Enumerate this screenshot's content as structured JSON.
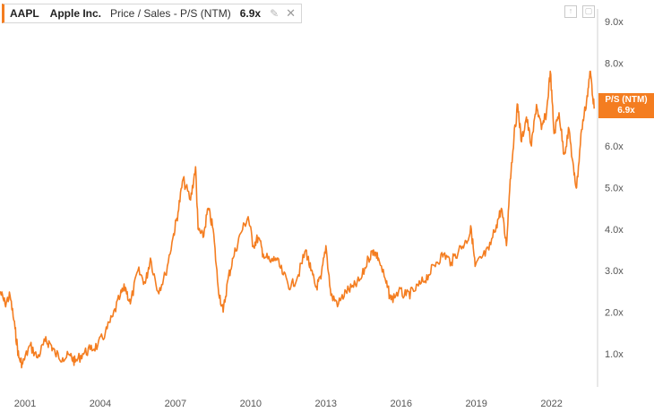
{
  "legend": {
    "ticker": "AAPL",
    "company": "Apple Inc.",
    "metric": "Price / Sales - P/S (NTM)",
    "current_value": "6.9x",
    "icons": [
      "chart-settings-icon",
      "close-icon"
    ]
  },
  "badge": {
    "label": "P/S (NTM)",
    "value": "6.9x"
  },
  "toolbar": {
    "icons": [
      "export-icon",
      "fullscreen-icon"
    ]
  },
  "colors": {
    "line": "#f47d20",
    "axis": "#d0d0d0",
    "text": "#555555"
  },
  "chart_data": {
    "type": "line",
    "title": "",
    "xlabel": "",
    "ylabel": "",
    "ylim": [
      0.2,
      9.3
    ],
    "xlim": [
      2000.0,
      2023.8
    ],
    "x_ticks": [
      2001,
      2004,
      2007,
      2010,
      2013,
      2016,
      2019,
      2022
    ],
    "y_ticks": [
      "1.0x",
      "2.0x",
      "3.0x",
      "4.0x",
      "5.0x",
      "6.0x",
      "7.0x",
      "8.0x",
      "9.0x"
    ],
    "y_tick_values": [
      1,
      2,
      3,
      4,
      5,
      6,
      7,
      8,
      9
    ],
    "grid": false,
    "series": [
      {
        "x": [
          2000.0,
          2000.2,
          2000.4,
          2000.6,
          2000.75,
          2000.9,
          2001.2,
          2001.5,
          2001.8,
          2002.0,
          2002.2,
          2002.5,
          2002.8,
          2003.0,
          2003.3,
          2003.6,
          2003.9,
          2004.2,
          2004.5,
          2004.8,
          2005.0,
          2005.2,
          2005.5,
          2005.8,
          2006.0,
          2006.3,
          2006.6,
          2006.9,
          2007.1,
          2007.3,
          2007.6,
          2007.8,
          2007.9,
          2008.1,
          2008.3,
          2008.5,
          2008.7,
          2008.9,
          2009.1,
          2009.3,
          2009.6,
          2009.9,
          2010.1,
          2010.3,
          2010.5,
          2010.8,
          2011.0,
          2011.3,
          2011.6,
          2011.9,
          2012.2,
          2012.4,
          2012.6,
          2012.8,
          2013.0,
          2013.2,
          2013.5,
          2013.8,
          2014.1,
          2014.4,
          2014.7,
          2014.9,
          2015.1,
          2015.4,
          2015.6,
          2015.9,
          2016.2,
          2016.5,
          2016.8,
          2017.1,
          2017.4,
          2017.7,
          2018.0,
          2018.3,
          2018.6,
          2018.8,
          2018.95,
          2019.2,
          2019.5,
          2019.8,
          2020.0,
          2020.2,
          2020.35,
          2020.5,
          2020.65,
          2020.8,
          2021.0,
          2021.2,
          2021.4,
          2021.6,
          2021.8,
          2021.95,
          2022.1,
          2022.3,
          2022.5,
          2022.7,
          2022.9,
          2023.0,
          2023.2,
          2023.4,
          2023.55,
          2023.7
        ],
        "y": [
          2.5,
          2.2,
          2.4,
          1.6,
          0.9,
          0.75,
          1.2,
          0.9,
          1.3,
          1.25,
          1.0,
          0.9,
          0.95,
          0.8,
          1.0,
          1.1,
          1.2,
          1.5,
          1.9,
          2.4,
          2.6,
          2.2,
          3.0,
          2.7,
          3.3,
          2.5,
          2.9,
          3.8,
          4.4,
          5.2,
          4.7,
          5.5,
          4.0,
          3.8,
          4.5,
          4.0,
          2.6,
          2.0,
          2.8,
          3.3,
          3.9,
          4.3,
          3.6,
          3.8,
          3.4,
          3.2,
          3.3,
          2.9,
          2.6,
          2.9,
          3.5,
          3.0,
          2.6,
          2.8,
          3.6,
          2.4,
          2.2,
          2.5,
          2.6,
          2.8,
          3.3,
          3.5,
          3.3,
          2.7,
          2.3,
          2.5,
          2.4,
          2.5,
          2.7,
          2.9,
          3.2,
          3.4,
          3.2,
          3.5,
          3.7,
          4.0,
          3.1,
          3.3,
          3.5,
          4.1,
          4.5,
          3.6,
          5.2,
          6.2,
          7.0,
          6.1,
          6.7,
          6.0,
          7.0,
          6.4,
          6.8,
          7.8,
          6.3,
          6.8,
          5.8,
          6.4,
          5.3,
          5.0,
          6.4,
          7.1,
          7.8,
          6.9
        ]
      }
    ]
  }
}
